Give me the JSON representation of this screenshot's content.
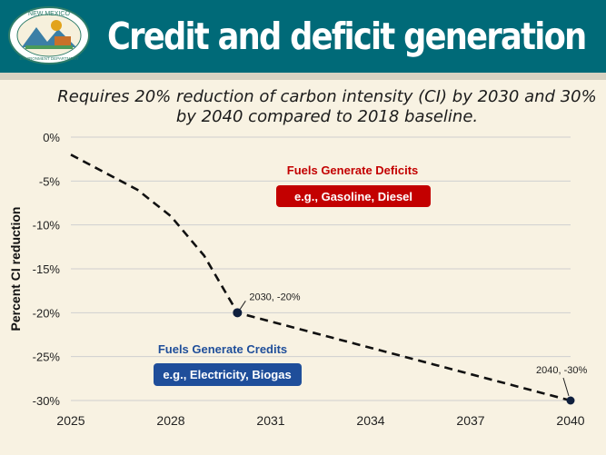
{
  "header": {
    "title": "Credit and deficit generation",
    "logo_text_top": "NEW MEXICO",
    "logo_text_bottom": "ENVIRONMENT DEPARTMENT"
  },
  "colors": {
    "header_bg": "#006a78",
    "deficit_red": "#c30000",
    "credit_blue": "#1f4e9a",
    "line": "#111111",
    "point": "#0f1f3d"
  },
  "subtitle": "Requires 20% reduction of carbon intensity (CI) by 2030 and 30% by 2040 compared to 2018 baseline.",
  "chart_data": {
    "type": "line",
    "xlabel": "",
    "ylabel": "Percent CI reduction",
    "xlim": [
      2025,
      2040
    ],
    "ylim": [
      -30,
      0
    ],
    "x_ticks": [
      "2025",
      "2028",
      "2031",
      "2034",
      "2037",
      "2040"
    ],
    "x_tick_values": [
      2025,
      2028,
      2031,
      2034,
      2037,
      2040
    ],
    "y_ticks": [
      "0%",
      "-5%",
      "-10%",
      "-15%",
      "-20%",
      "-25%",
      "-30%"
    ],
    "y_tick_values": [
      0,
      -5,
      -10,
      -15,
      -20,
      -25,
      -30
    ],
    "grid": "horizontal",
    "series": [
      {
        "style": "dashed",
        "x": [
          2025,
          2026,
          2027,
          2028,
          2029,
          2030,
          2031,
          2032,
          2033,
          2034,
          2035,
          2036,
          2037,
          2038,
          2039,
          2040
        ],
        "y": [
          -2,
          -4,
          -6,
          -9,
          -13.5,
          -20,
          -21,
          -22,
          -23,
          -24,
          -25,
          -26,
          -27,
          -28,
          -29,
          -30
        ]
      }
    ],
    "points": [
      {
        "x": 2030,
        "y": -20,
        "label": "2030, -20%"
      },
      {
        "x": 2040,
        "y": -30,
        "label": "2040, -30%"
      }
    ],
    "annotations": [
      {
        "title": "Fuels Generate Deficits",
        "box": "e.g., Gasoline, Diesel"
      },
      {
        "title": "Fuels Generate Credits",
        "box": "e.g., Electricity, Biogas"
      }
    ]
  }
}
